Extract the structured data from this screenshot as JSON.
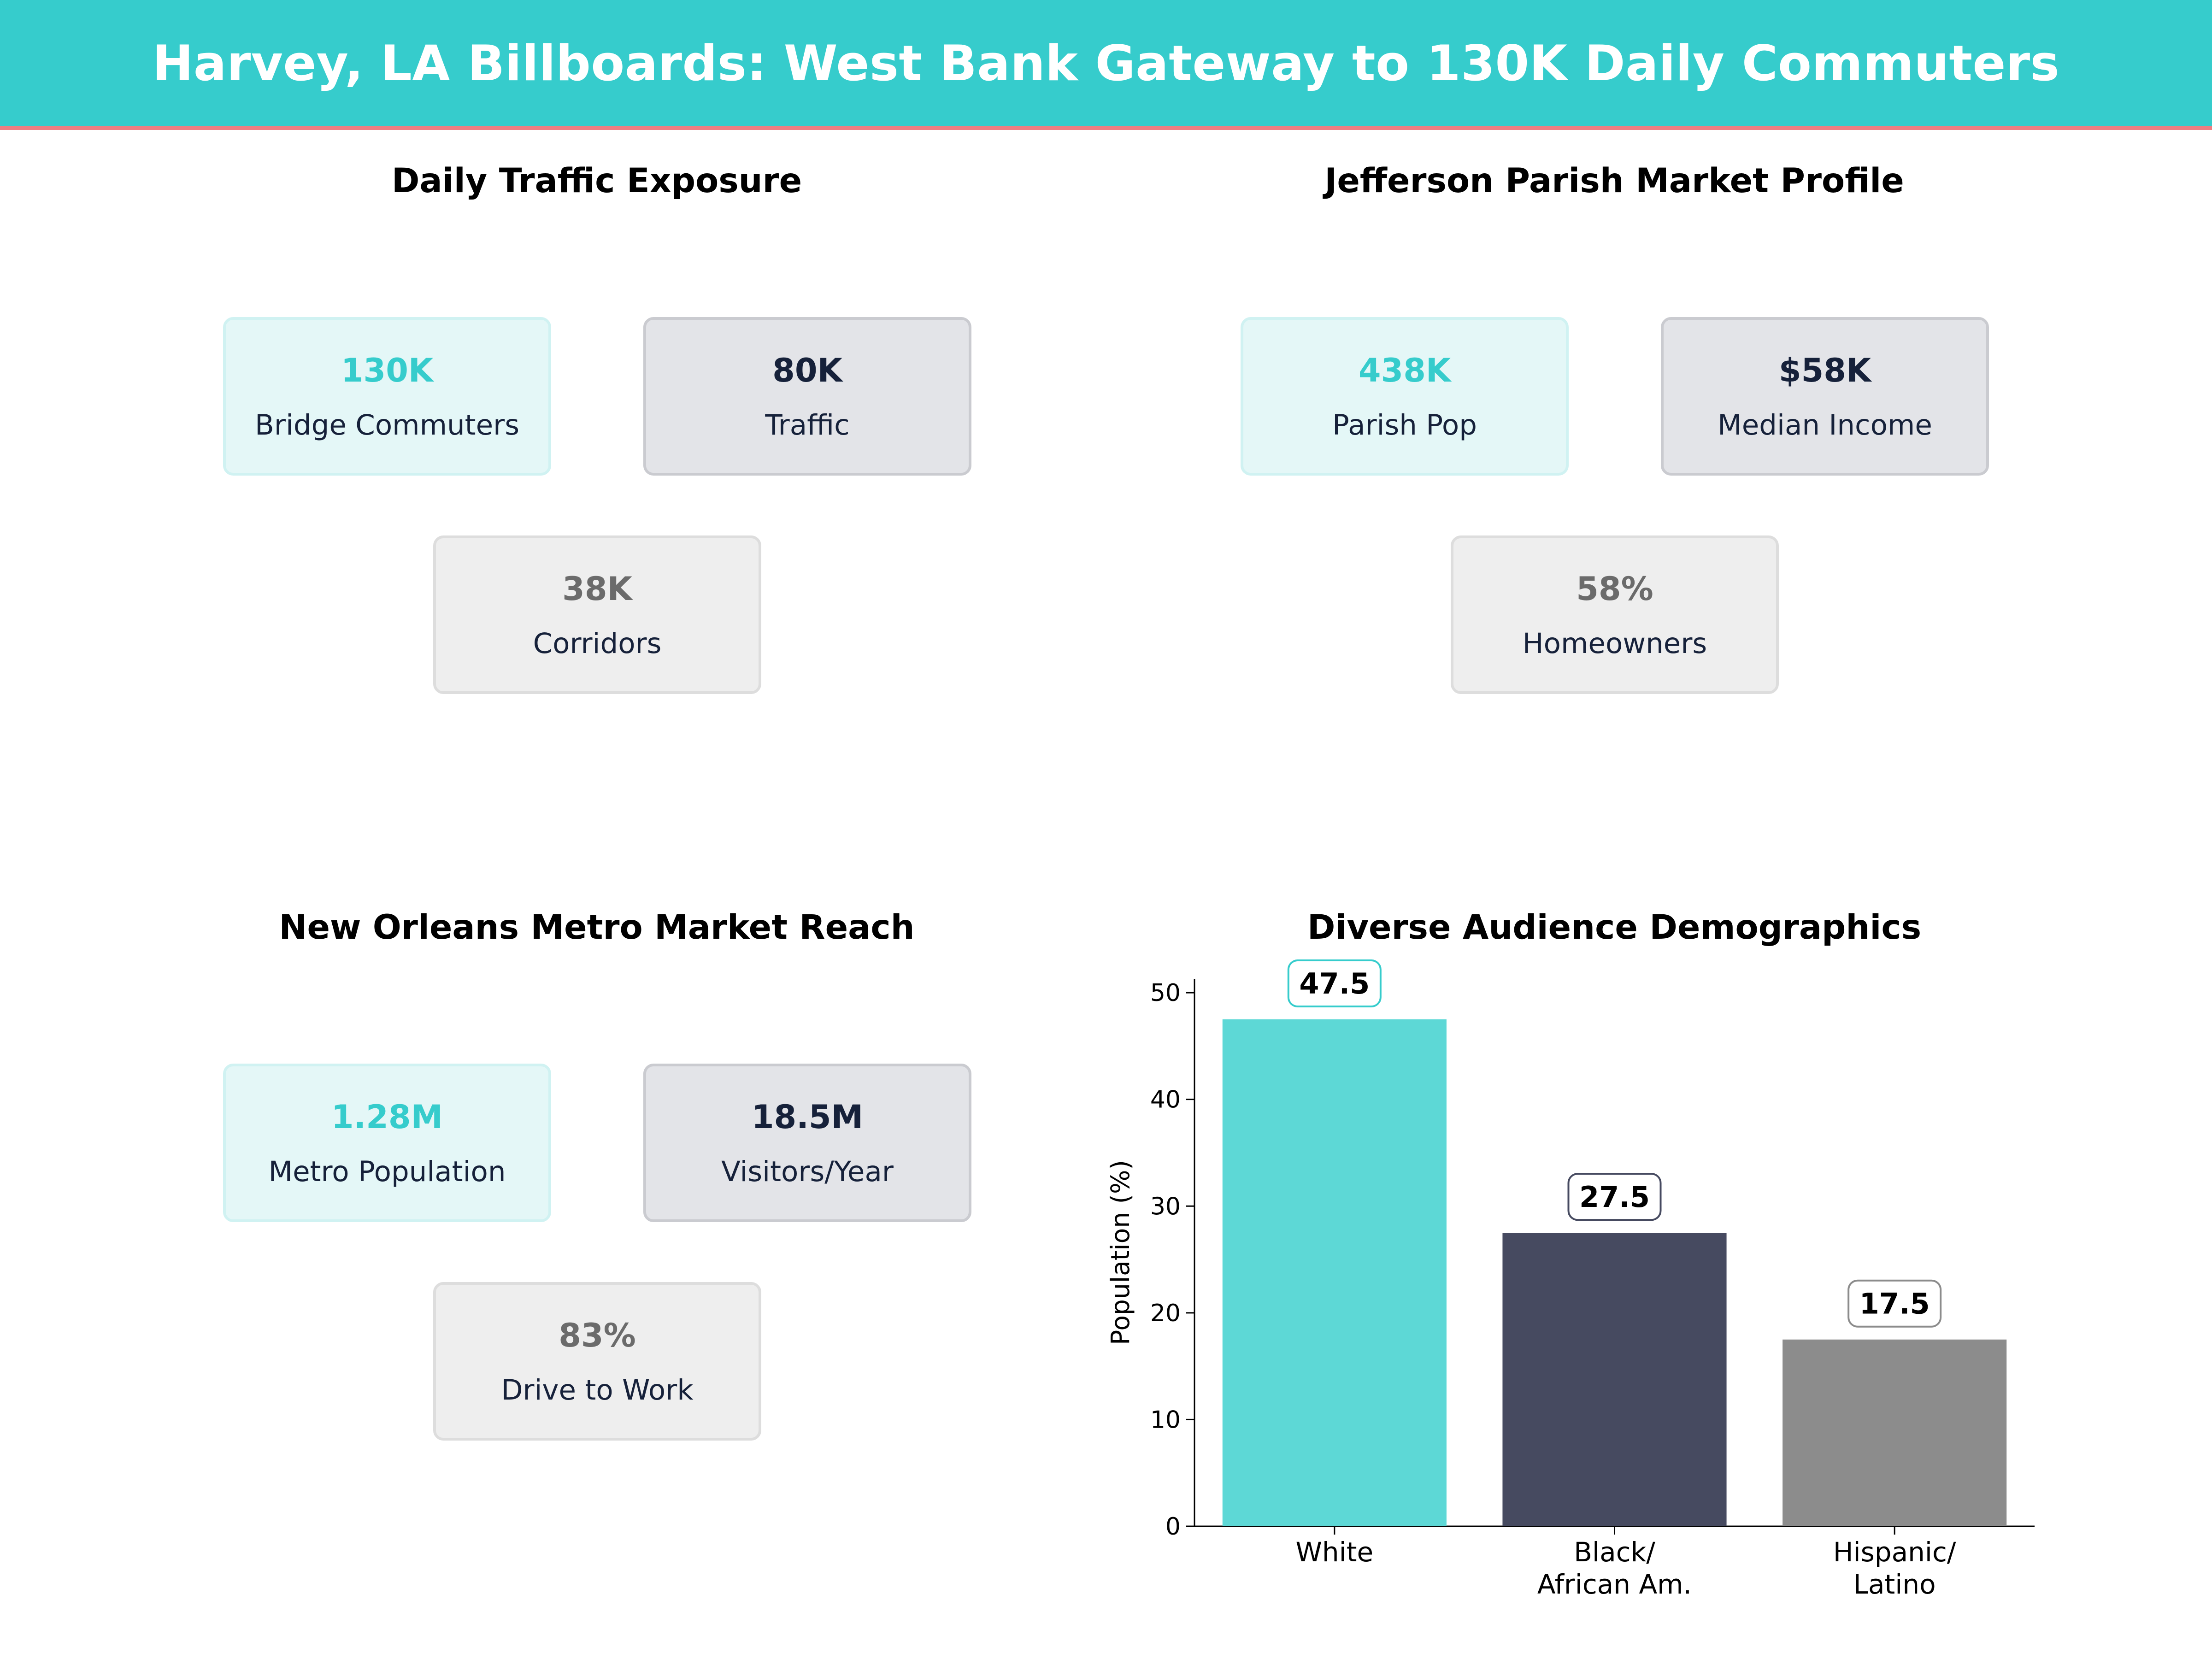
{
  "header": {
    "title": "Harvey, LA Billboards: West Bank Gateway to 130K Daily Commuters"
  },
  "colors": {
    "teal": "#36cccc",
    "navy": "#464a60",
    "gray": "#8c8c8c",
    "accent_line": "#ef7e82"
  },
  "panels": {
    "traffic": {
      "title": "Daily Traffic Exposure",
      "cards": [
        {
          "value": "130K",
          "label": "Bridge Commuters"
        },
        {
          "value": "80K",
          "label": "Traffic"
        },
        {
          "value": "38K",
          "label": "Corridors"
        }
      ]
    },
    "market": {
      "title": "Jefferson Parish Market Profile",
      "cards": [
        {
          "value": "438K",
          "label": "Parish Pop"
        },
        {
          "value": "$58K",
          "label": "Median Income"
        },
        {
          "value": "58%",
          "label": "Homeowners"
        }
      ]
    },
    "metro": {
      "title": "New Orleans Metro Market Reach",
      "cards": [
        {
          "value": "1.28M",
          "label": "Metro Population"
        },
        {
          "value": "18.5M",
          "label": "Visitors/Year"
        },
        {
          "value": "83%",
          "label": "Drive to Work"
        }
      ]
    }
  },
  "chart_data": {
    "type": "bar",
    "title": "Diverse Audience Demographics",
    "categories": [
      [
        "White"
      ],
      [
        "Black/",
        "African Am."
      ],
      [
        "Hispanic/",
        "Latino"
      ]
    ],
    "values": [
      47.5,
      27.5,
      17.5
    ],
    "value_labels": [
      "47.5",
      "27.5",
      "17.5"
    ],
    "bar_colors": [
      "#5dd8d6",
      "#464a60",
      "#8c8c8c"
    ],
    "label_border_colors": [
      "#36cccc",
      "#464a60",
      "#8c8c8c"
    ],
    "xlabel": "",
    "ylabel": "Population (%)",
    "ylim": [
      0,
      51.3
    ],
    "yticks": [
      0,
      10,
      20,
      30,
      40,
      50
    ],
    "grid": false,
    "legend": "none"
  }
}
